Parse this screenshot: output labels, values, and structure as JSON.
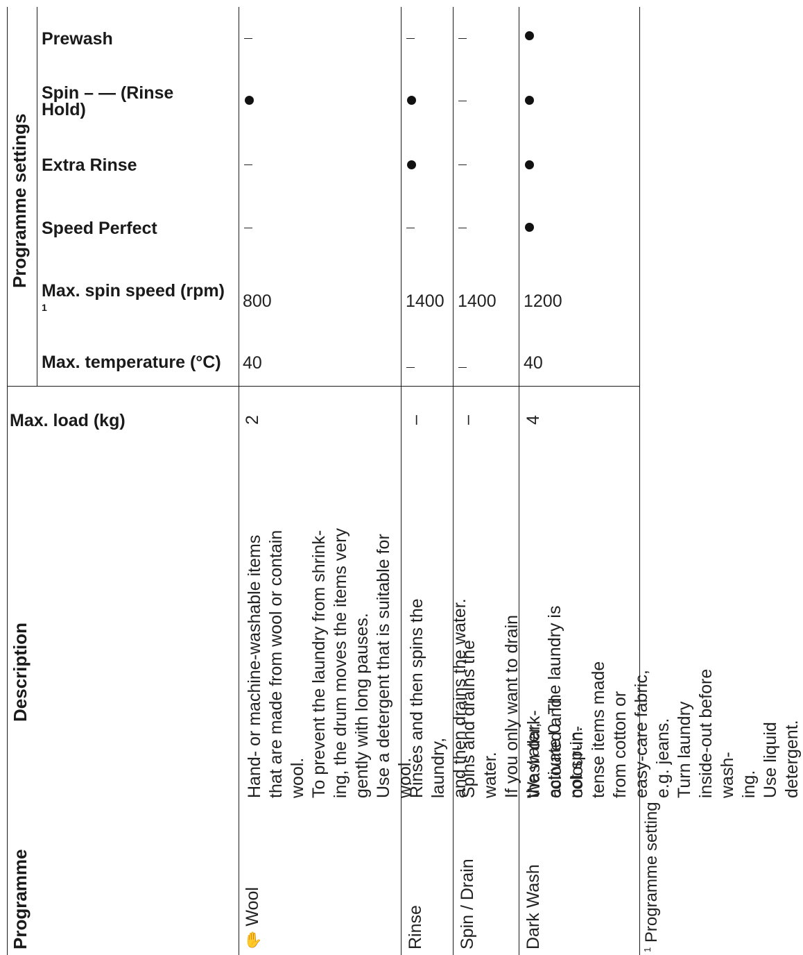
{
  "group_heading": "Programme settings",
  "column_headers": {
    "programme": "Programme",
    "description": "Description",
    "max_load": "Max. load (kg)"
  },
  "setting_labels": {
    "prewash": "Prewash",
    "spin_rinse_hold": "Spin – — (Rinse Hold)",
    "extra_rinse": "Extra Rinse",
    "speed_perfect": "Speed Perfect",
    "max_spin": "Max. spin speed (rpm)",
    "max_spin_footnote_ref": "1",
    "max_temp": "Max. temperature (°C)"
  },
  "programmes": [
    {
      "name": "Wool",
      "icon": "wool-hand-icon",
      "description": "Hand- or machine-washable items\nthat are made from wool or contain\nwool.\nTo prevent the laundry from shrink-\ning, the drum moves the items very\ngently with long pauses.\nUse a detergent that is suitable for\nwool.",
      "max_load": "2",
      "prewash": "–",
      "spin_rinse_hold": "●",
      "extra_rinse": "–",
      "speed_perfect": "–",
      "max_spin": "800",
      "max_temp": "40"
    },
    {
      "name": "Rinse",
      "description": "Rinses and then spins the laundry,\nand then drains the water.",
      "max_load": "–",
      "prewash": "–",
      "spin_rinse_hold": "●",
      "extra_rinse": "●",
      "speed_perfect": "–",
      "max_spin": "1400",
      "max_temp": "–"
    },
    {
      "name": "Spin / Drain",
      "description": "Spins and drains the water.\nIf you only want to drain the water,\nactivate 0. The laundry is not spun.",
      "max_load": "–",
      "prewash": "–",
      "spin_rinse_hold": "–",
      "extra_rinse": "–",
      "speed_perfect": "–",
      "max_spin": "1400",
      "max_temp": "–"
    },
    {
      "name": "Dark Wash",
      "description": "Wash dark-coloured and colour-in-\ntense items made from cotton or\neasy-care fabric, e.g. jeans.\nTurn laundry inside-out before wash-\ning.\nUse liquid detergent.",
      "max_load": "4",
      "prewash": "●",
      "spin_rinse_hold": "●",
      "extra_rinse": "●",
      "speed_perfect": "●",
      "max_spin": "1200",
      "max_temp": "40"
    }
  ],
  "footnote": {
    "marker": "1",
    "text": "Programme setting"
  }
}
